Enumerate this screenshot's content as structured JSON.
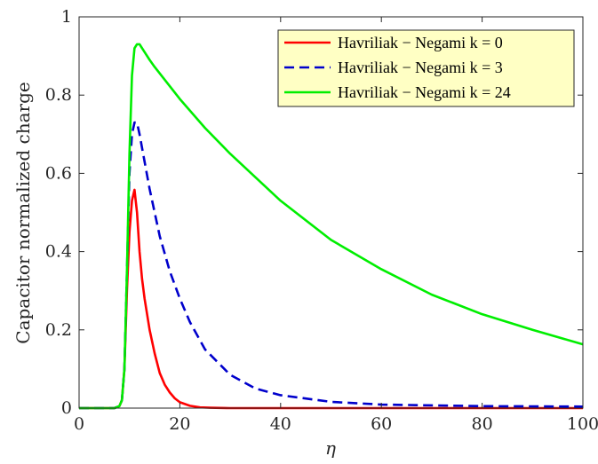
{
  "chart_data": {
    "type": "line",
    "title": "",
    "xlabel": "η",
    "ylabel": "Capacitor normalized charge",
    "xlim": [
      0,
      100
    ],
    "ylim": [
      0,
      1
    ],
    "xticks": [
      0,
      20,
      40,
      60,
      80,
      100
    ],
    "yticks": [
      0,
      0.2,
      0.4,
      0.6,
      0.8,
      1
    ],
    "xtick_labels": [
      "0",
      "20",
      "40",
      "60",
      "80",
      "100"
    ],
    "ytick_labels": [
      "0",
      "0.2",
      "0.4",
      "0.6",
      "0.8",
      "1"
    ],
    "grid": false,
    "legend_position": "top-right",
    "series": [
      {
        "name": "Havriliak − Negami k = 0",
        "color": "#ff0000",
        "dash": "solid",
        "x": [
          0,
          7,
          8,
          8.5,
          9,
          9.5,
          10,
          10.5,
          11,
          11.5,
          12,
          12.5,
          13,
          14,
          15,
          16,
          17,
          18,
          19,
          20,
          22,
          24,
          26,
          30,
          40,
          60,
          80,
          100
        ],
        "y": [
          0,
          0,
          0.005,
          0.02,
          0.1,
          0.3,
          0.45,
          0.53,
          0.558,
          0.5,
          0.4,
          0.33,
          0.28,
          0.2,
          0.14,
          0.09,
          0.06,
          0.04,
          0.025,
          0.015,
          0.006,
          0.002,
          0.001,
          0,
          0,
          0,
          0,
          0
        ]
      },
      {
        "name": "Havriliak − Negami k = 3",
        "color": "#0000cc",
        "dash": "dashed",
        "x": [
          0,
          7,
          8,
          8.5,
          9,
          9.5,
          10,
          10.5,
          11,
          11.5,
          12,
          13,
          14,
          15,
          16,
          18,
          20,
          22,
          25,
          30,
          35,
          40,
          50,
          60,
          80,
          100
        ],
        "y": [
          0,
          0,
          0.005,
          0.02,
          0.1,
          0.35,
          0.6,
          0.7,
          0.73,
          0.73,
          0.7,
          0.63,
          0.56,
          0.5,
          0.44,
          0.35,
          0.28,
          0.22,
          0.15,
          0.085,
          0.05,
          0.033,
          0.016,
          0.009,
          0.005,
          0.004
        ]
      },
      {
        "name": "Havriliak − Negami k = 24",
        "color": "#00ee00",
        "dash": "solid",
        "x": [
          0,
          7,
          8,
          8.5,
          9,
          9.5,
          10,
          10.5,
          11,
          11.5,
          12,
          13,
          14,
          15,
          20,
          25,
          30,
          40,
          50,
          60,
          70,
          80,
          90,
          100
        ],
        "y": [
          0,
          0,
          0.005,
          0.02,
          0.1,
          0.35,
          0.65,
          0.85,
          0.92,
          0.93,
          0.93,
          0.91,
          0.89,
          0.872,
          0.79,
          0.716,
          0.65,
          0.53,
          0.43,
          0.355,
          0.29,
          0.24,
          0.2,
          0.163
        ]
      }
    ]
  }
}
